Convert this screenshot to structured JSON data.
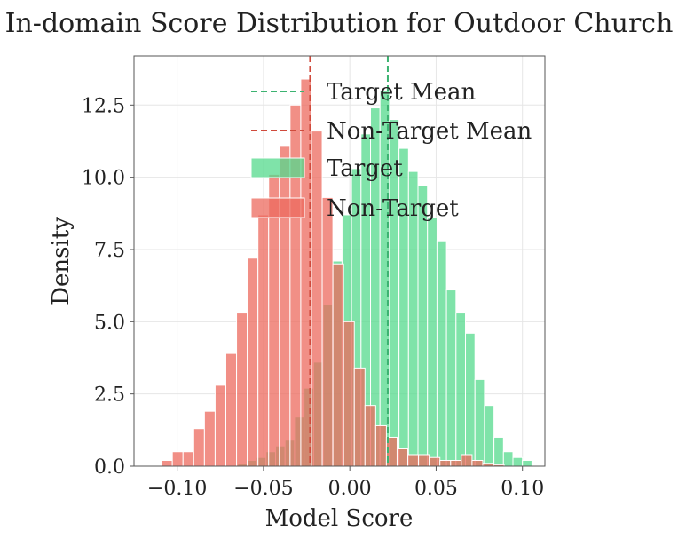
{
  "chart_data": {
    "type": "histogram",
    "title": "In-domain Score Distribution for Outdoor Church",
    "xlabel": "Model Score",
    "ylabel": "Density",
    "xlim": [
      -0.125,
      0.113
    ],
    "ylim": [
      0,
      14.2
    ],
    "xticks": [
      -0.1,
      -0.05,
      0.0,
      0.05,
      0.1
    ],
    "xtick_labels": [
      "−0.10",
      "−0.05",
      "0.00",
      "0.05",
      "0.10"
    ],
    "yticks": [
      0.0,
      2.5,
      5.0,
      7.5,
      10.0,
      12.5
    ],
    "ytick_labels": [
      "0.0",
      "2.5",
      "5.0",
      "7.5",
      "10.0",
      "12.5"
    ],
    "grid": true,
    "legend_position": "top-right",
    "series": [
      {
        "name": "Target",
        "color": "#54d98c",
        "bin_edges": [
          -0.065,
          -0.0595,
          -0.054,
          -0.0485,
          -0.043,
          -0.0375,
          -0.032,
          -0.0265,
          -0.021,
          -0.0155,
          -0.01,
          -0.0045,
          0.001,
          0.0065,
          0.012,
          0.0175,
          0.023,
          0.0285,
          0.034,
          0.0395,
          0.045,
          0.0505,
          0.056,
          0.0615,
          0.067,
          0.0725,
          0.078,
          0.0835,
          0.089,
          0.0945,
          0.1,
          0.1055
        ],
        "values": [
          0.1,
          0.2,
          0.3,
          0.5,
          0.7,
          0.9,
          1.7,
          2.7,
          3.6,
          5.6,
          7.1,
          8.7,
          10.3,
          11.5,
          12.4,
          13.0,
          12.0,
          11.0,
          10.2,
          9.7,
          8.6,
          7.8,
          6.1,
          5.3,
          4.6,
          3.0,
          2.1,
          1.0,
          0.5,
          0.3,
          0.2
        ]
      },
      {
        "name": "Non-Target",
        "color": "#ec6a5e",
        "bin_edges": [
          -0.109,
          -0.1028,
          -0.0966,
          -0.0904,
          -0.0842,
          -0.078,
          -0.0718,
          -0.0656,
          -0.0594,
          -0.0532,
          -0.047,
          -0.0408,
          -0.0346,
          -0.0284,
          -0.0222,
          -0.016,
          -0.0098,
          -0.0036,
          0.0026,
          0.0088,
          0.015,
          0.0212,
          0.0274,
          0.0336,
          0.0398,
          0.046,
          0.0522,
          0.0584,
          0.0646,
          0.0708,
          0.077,
          0.0832,
          0.0894
        ],
        "values": [
          0.2,
          0.5,
          0.5,
          1.3,
          1.9,
          2.8,
          3.9,
          5.3,
          7.2,
          8.7,
          10.1,
          11.1,
          12.5,
          13.4,
          11.6,
          9.3,
          7.0,
          5.0,
          3.4,
          2.1,
          1.4,
          1.0,
          0.6,
          0.4,
          0.4,
          0.3,
          0.2,
          0.2,
          0.4,
          0.2,
          0.1,
          0.05
        ]
      }
    ],
    "mean_lines": [
      {
        "name": "Target Mean",
        "x": 0.022,
        "color": "#3cb371"
      },
      {
        "name": "Non-Target Mean",
        "x": -0.023,
        "color": "#d04a3c"
      }
    ],
    "legend": [
      "Target Mean",
      "Non-Target Mean",
      "Target",
      "Non-Target"
    ]
  }
}
